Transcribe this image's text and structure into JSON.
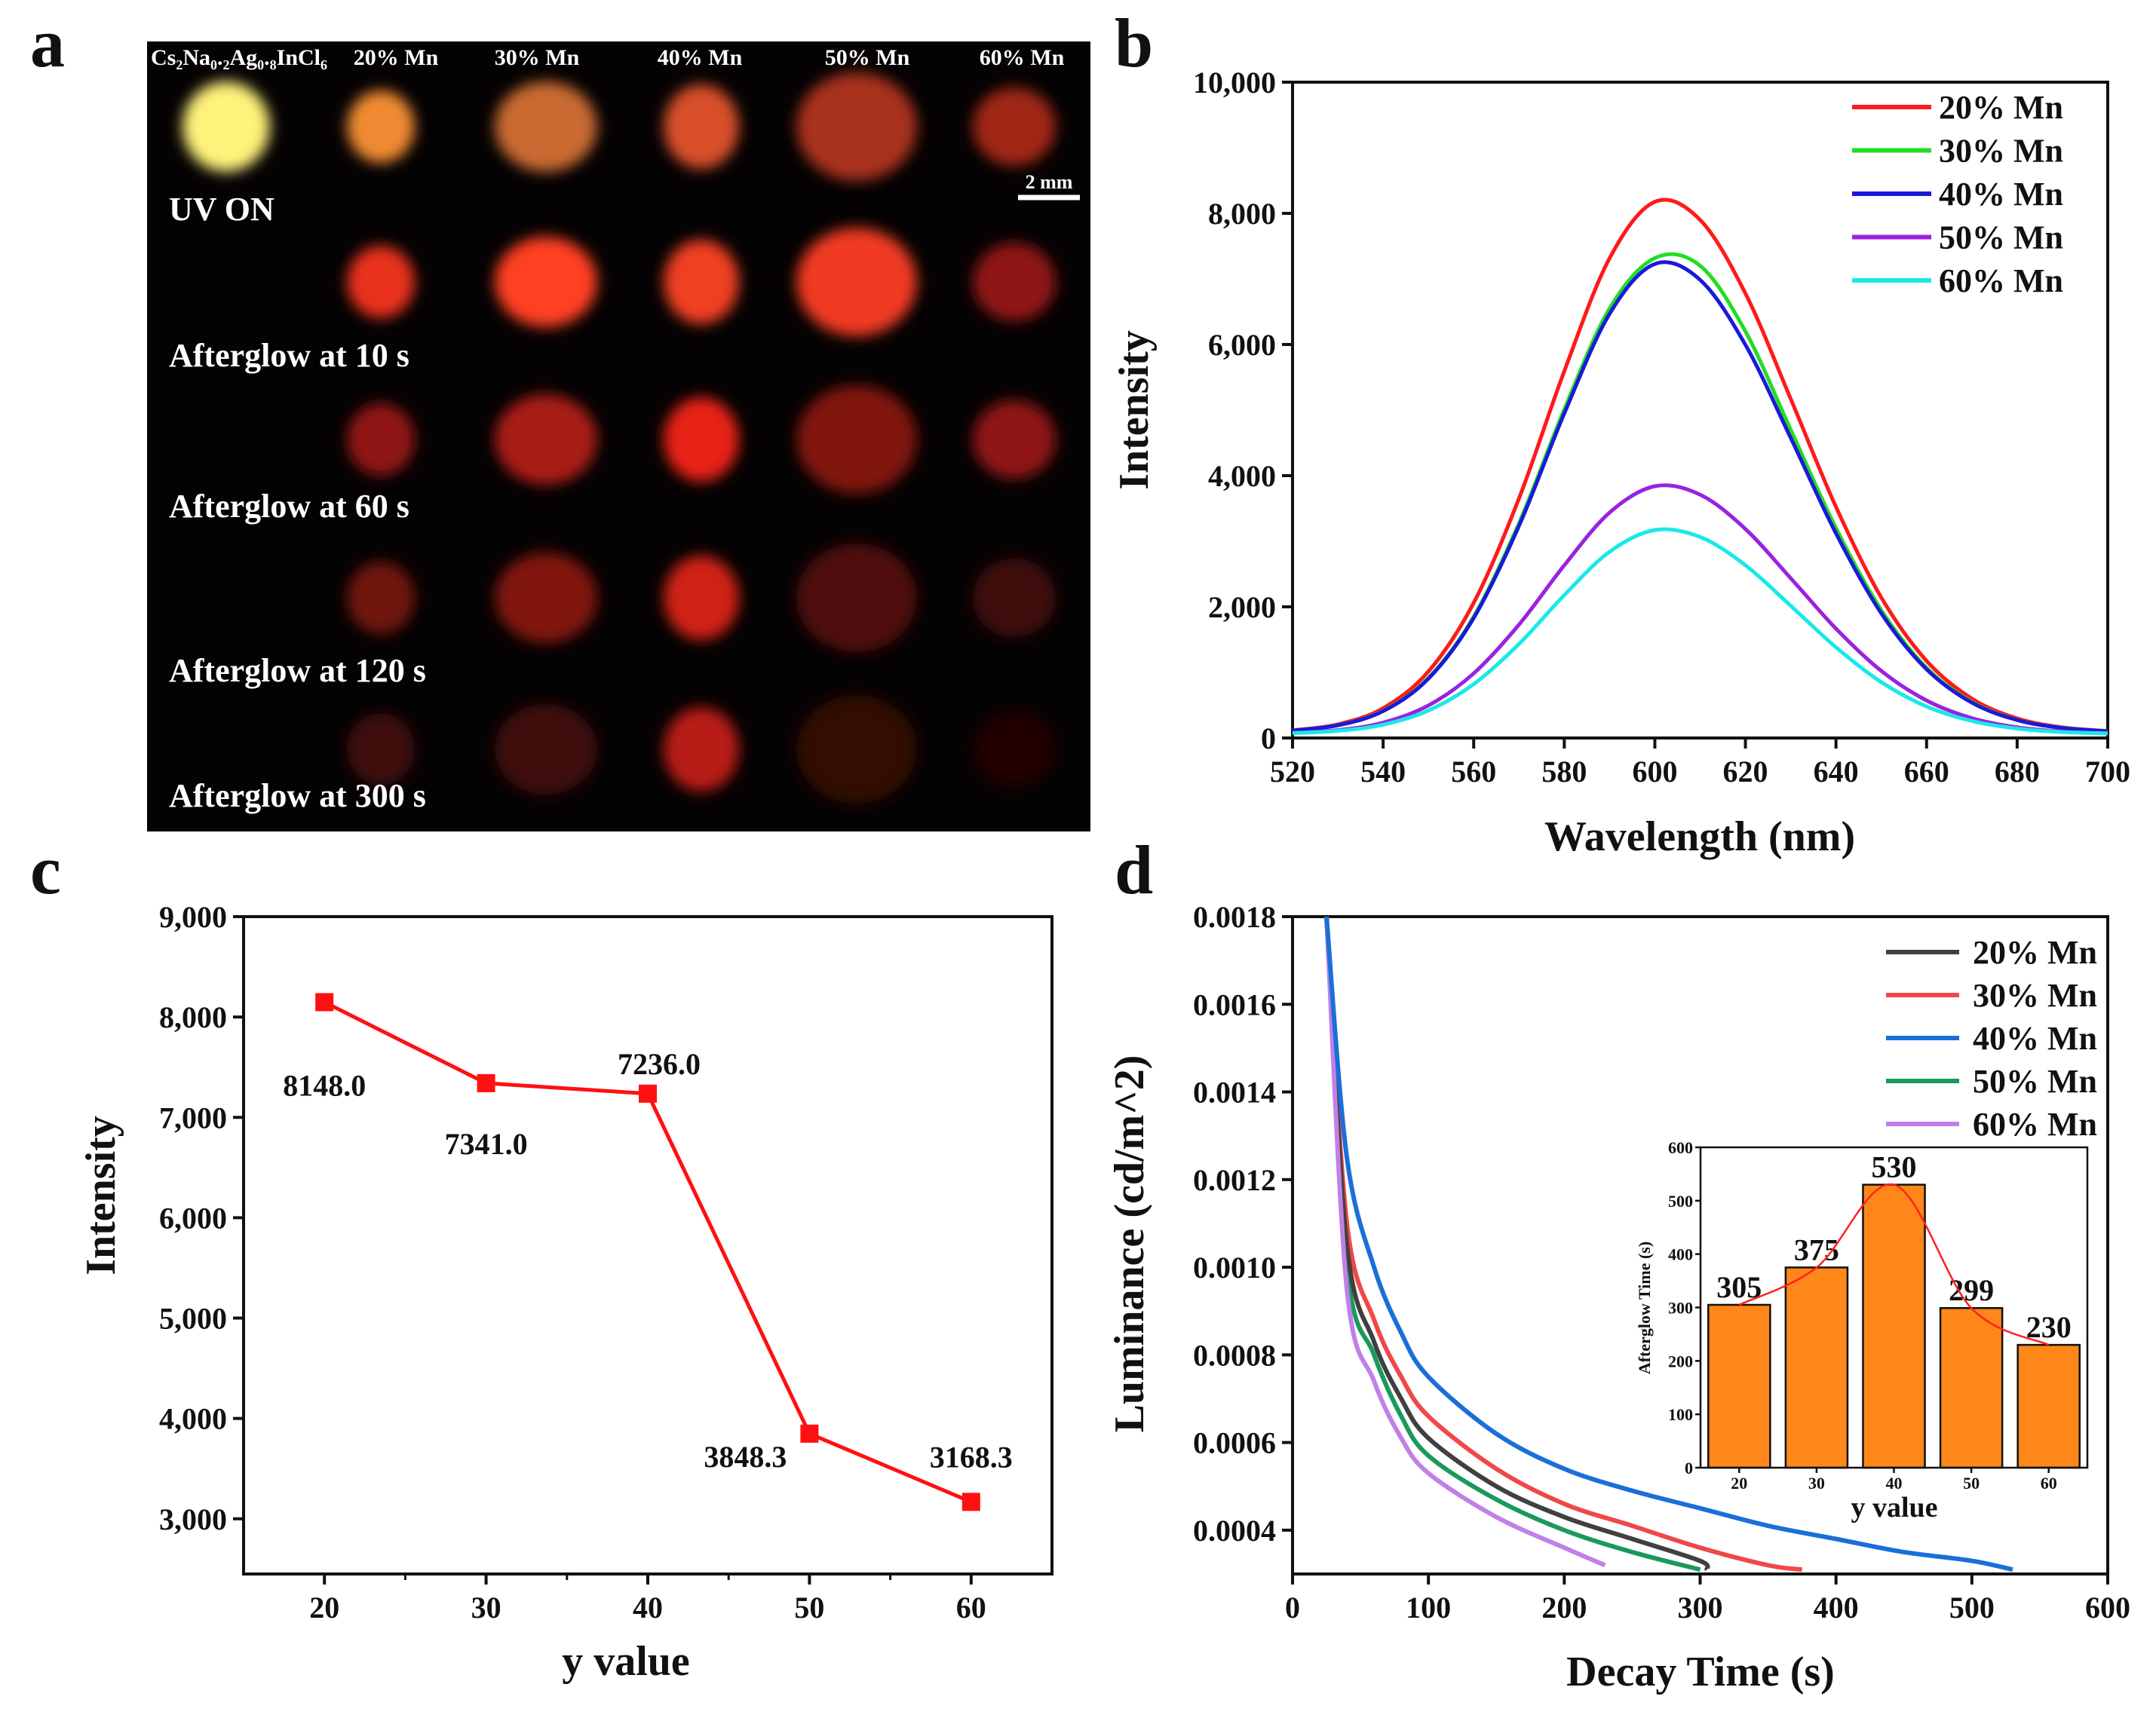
{
  "panel_labels": [
    "a",
    "b",
    "c",
    "d"
  ],
  "photo": {
    "column_headers": [
      "Cs₂Na₀.₂Ag₀.₈InCl₆",
      "20% Mn",
      "30% Mn",
      "40% Mn",
      "50% Mn",
      "60% Mn"
    ],
    "row_labels": [
      "UV ON",
      "Afterglow at 10 s",
      "Afterglow at 60 s",
      "Afterglow at 120 s",
      "Afterglow at 300 s"
    ],
    "scale_bar": "2 mm",
    "glow_colors": [
      [
        "#fff27a",
        "#f08a30",
        "#c86a30",
        "#d8502a",
        "#a8301e",
        "#a02818"
      ],
      [
        null,
        "#e8301e",
        "#ff4020",
        "#f04020",
        "#f03a22",
        "#901818"
      ],
      [
        null,
        "#901818",
        "#a81a18",
        "#e82218",
        "#801810",
        "#901818"
      ],
      [
        null,
        "#701410",
        "#801410",
        "#d02018",
        "#501008",
        "#401008"
      ],
      [
        null,
        "#400c08",
        "#400c08",
        "#b81a14",
        "#300806",
        "#200604"
      ]
    ]
  },
  "chart_data": [
    {
      "id": "b",
      "type": "line",
      "xlabel": "Wavelength (nm)",
      "ylabel": "Intensity",
      "xlim": [
        520,
        700
      ],
      "ylim": [
        0,
        10000
      ],
      "x_ticks": [
        "520",
        "540",
        "560",
        "580",
        "600",
        "620",
        "640",
        "660",
        "680",
        "700"
      ],
      "y_ticks": [
        "0",
        "2,000",
        "4,000",
        "6,000",
        "8,000",
        "10,000"
      ],
      "legend_position": "top-right",
      "x": [
        520,
        530,
        540,
        550,
        560,
        570,
        580,
        590,
        600,
        610,
        620,
        630,
        640,
        650,
        660,
        670,
        680,
        690,
        700
      ],
      "series": [
        {
          "name": "20% Mn",
          "color": "#ff1a1a",
          "values": [
            117,
            208,
            454,
            1014,
            2061,
            3653,
            5593,
            7315,
            8176,
            7900,
            6779,
            5171,
            3523,
            2142,
            1176,
            600,
            299,
            161,
            107
          ]
        },
        {
          "name": "30% Mn",
          "color": "#22dd22",
          "values": [
            113,
            195,
            414,
            915,
            1851,
            3274,
            5010,
            6549,
            7318,
            7200,
            6200,
            4700,
            3200,
            1950,
            1070,
            550,
            276,
            153,
            104
          ]
        },
        {
          "name": "40% Mn",
          "color": "#1a1ad8",
          "values": [
            113,
            193,
            410,
            905,
            1830,
            3235,
            4948,
            6468,
            7228,
            6985,
            5995,
            4576,
            3120,
            1901,
            1048,
            539,
            274,
            152,
            104
          ]
        },
        {
          "name": "50% Mn",
          "color": "#9a22e0",
          "values": [
            77,
            120,
            234,
            496,
            985,
            1728,
            2633,
            3437,
            3839,
            3710,
            3187,
            2436,
            1667,
            1023,
            572,
            303,
            162,
            98,
            73
          ]
        },
        {
          "name": "60% Mn",
          "color": "#1ae8e8",
          "values": [
            74,
            109,
            204,
            419,
            821,
            1433,
            2178,
            2840,
            3171,
            3065,
            2634,
            2016,
            1383,
            852,
            481,
            260,
            144,
            91,
            70
          ]
        }
      ]
    },
    {
      "id": "c",
      "type": "line",
      "xlabel": "y value",
      "ylabel": "Intensity",
      "xlim": [
        15,
        65
      ],
      "ylim": [
        2450,
        9000
      ],
      "x_ticks": [
        "20",
        "30",
        "40",
        "50",
        "60"
      ],
      "y_ticks": [
        "3,000",
        "4,000",
        "5,000",
        "6,000",
        "7,000",
        "8,000",
        "9,000"
      ],
      "color": "#ff1010",
      "x": [
        20,
        30,
        40,
        50,
        60
      ],
      "values": [
        8148.0,
        7341.0,
        7236.0,
        3848.3,
        3168.3
      ],
      "data_labels": [
        "8148.0",
        "7341.0",
        "7236.0",
        "3848.3",
        "3168.3"
      ]
    },
    {
      "id": "d",
      "type": "line",
      "xlabel": "Decay Time (s)",
      "ylabel": "Luminance (cd/m^2)",
      "xlim": [
        0,
        600
      ],
      "ylim": [
        0.0003,
        0.0018
      ],
      "x_ticks": [
        "0",
        "100",
        "200",
        "300",
        "400",
        "500",
        "600"
      ],
      "y_ticks": [
        "0.0004",
        "0.0006",
        "0.0008",
        "0.0010",
        "0.0012",
        "0.0014",
        "0.0016",
        "0.0018"
      ],
      "legend_position": "top-right",
      "series": [
        {
          "name": "20% Mn",
          "color": "#404040",
          "x": [
            25,
            40,
            60,
            80,
            100,
            150,
            200,
            250,
            300,
            305
          ],
          "values": [
            0.0018,
            0.00105,
            0.00083,
            0.0007,
            0.00061,
            0.0005,
            0.00043,
            0.00038,
            0.00033,
            0.00031
          ]
        },
        {
          "name": "30% Mn",
          "color": "#f04848",
          "x": [
            25,
            40,
            60,
            80,
            100,
            150,
            200,
            250,
            300,
            350,
            375
          ],
          "values": [
            0.0018,
            0.0011,
            0.00088,
            0.00075,
            0.00066,
            0.00054,
            0.00046,
            0.00041,
            0.00036,
            0.00032,
            0.00031
          ]
        },
        {
          "name": "40% Mn",
          "color": "#1a6fd8",
          "x": [
            25,
            40,
            60,
            80,
            100,
            150,
            200,
            250,
            300,
            350,
            400,
            450,
            500,
            530
          ],
          "values": [
            0.0018,
            0.00125,
            0.001,
            0.00085,
            0.00075,
            0.00062,
            0.00054,
            0.00049,
            0.00045,
            0.00041,
            0.00038,
            0.00035,
            0.00033,
            0.00031
          ]
        },
        {
          "name": "50% Mn",
          "color": "#1a9a5a",
          "x": [
            25,
            40,
            60,
            80,
            100,
            150,
            200,
            250,
            300
          ],
          "values": [
            0.0018,
            0.001,
            0.0008,
            0.00066,
            0.00057,
            0.00047,
            0.0004,
            0.00035,
            0.00031
          ]
        },
        {
          "name": "60% Mn",
          "color": "#c080e8",
          "x": [
            25,
            40,
            60,
            80,
            100,
            150,
            200,
            230
          ],
          "values": [
            0.0018,
            0.00095,
            0.00074,
            0.00061,
            0.00053,
            0.00043,
            0.00036,
            0.00032
          ]
        }
      ]
    },
    {
      "id": "d-inset",
      "type": "bar",
      "xlabel": "y value",
      "ylabel": "Afterglow Time (s)",
      "ylim": [
        0,
        600
      ],
      "categories": [
        "20",
        "30",
        "40",
        "50",
        "60"
      ],
      "y_ticks": [
        "0",
        "100",
        "200",
        "300",
        "400",
        "500",
        "600"
      ],
      "values": [
        305,
        375,
        530,
        299,
        230
      ],
      "data_labels": [
        "305",
        "375",
        "530",
        "299",
        "230"
      ],
      "bar_color": "#ff8618",
      "fit_color": "#ff2020"
    }
  ]
}
